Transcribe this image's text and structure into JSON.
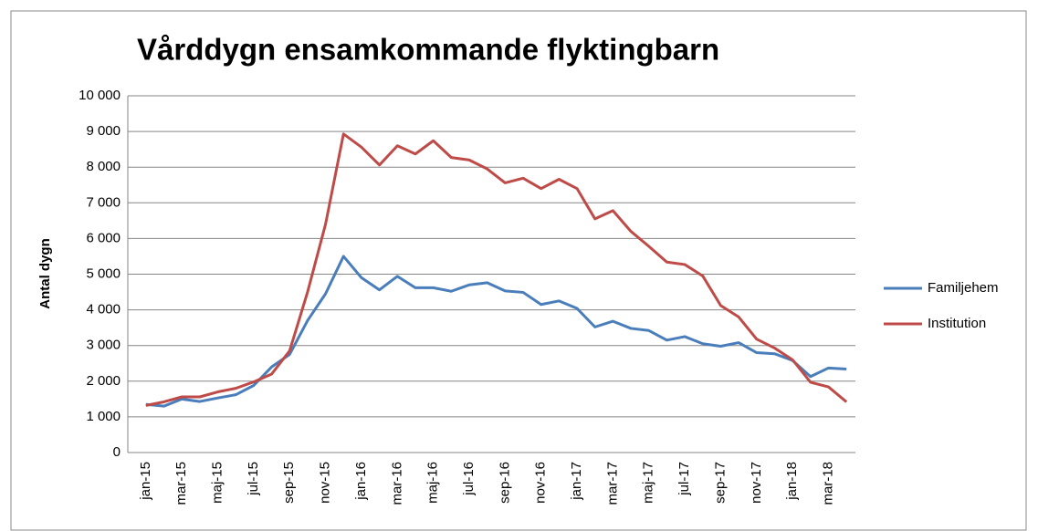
{
  "chart_data": {
    "type": "line",
    "title": "Vårddygn ensamkommande flyktingbarn",
    "y_label": "Antal dygn",
    "categories": [
      "jan-15",
      null,
      "mar-15",
      null,
      "maj-15",
      null,
      "jul-15",
      null,
      "sep-15",
      null,
      "nov-15",
      null,
      "jan-16",
      null,
      "mar-16",
      null,
      "maj-16",
      null,
      "jul-16",
      null,
      "sep-16",
      null,
      "nov-16",
      null,
      "jan-17",
      null,
      "mar-17",
      null,
      "maj-17",
      null,
      "jul-17",
      null,
      "sep-17",
      null,
      "nov-17",
      null,
      "jan-18",
      null,
      "mar-18",
      null
    ],
    "series": [
      {
        "name": "Familjehem",
        "color": "#4a7ebb",
        "values": [
          1350,
          1300,
          1500,
          1430,
          1530,
          1620,
          1880,
          2400,
          2750,
          3700,
          4450,
          5500,
          4900,
          4560,
          4940,
          4620,
          4620,
          4520,
          4700,
          4760,
          4530,
          4490,
          4150,
          4250,
          4040,
          3520,
          3680,
          3480,
          3420,
          3150,
          3250,
          3050,
          2980,
          3080,
          2800,
          2770,
          2580,
          2130,
          2370,
          2340
        ]
      },
      {
        "name": "Institution",
        "color": "#be4b48",
        "values": [
          1320,
          1420,
          1560,
          1560,
          1700,
          1800,
          1980,
          2200,
          2850,
          4500,
          6400,
          8930,
          8560,
          8060,
          8600,
          8370,
          8740,
          8270,
          8200,
          7950,
          7560,
          7690,
          7400,
          7660,
          7400,
          6550,
          6780,
          6200,
          5780,
          5340,
          5270,
          4950,
          4120,
          3800,
          3180,
          2930,
          2600,
          1970,
          1840,
          1420
        ]
      }
    ],
    "ylim": [
      0,
      10000
    ],
    "yticks": [
      0,
      {
        "value": 1000,
        "label": "1 000"
      },
      {
        "value": 2000,
        "label": "2 000"
      },
      {
        "value": 3000,
        "label": "3 000"
      },
      {
        "value": 4000,
        "label": "4 000"
      },
      {
        "value": 5000,
        "label": "5 000"
      },
      {
        "value": 6000,
        "label": "6 000"
      },
      {
        "value": 7000,
        "label": "7 000"
      },
      {
        "value": 8000,
        "label": "8 000"
      },
      {
        "value": 9000,
        "label": "9 000"
      },
      {
        "value": 10000,
        "label": "10 000"
      }
    ],
    "grid": true,
    "legend": "right"
  }
}
